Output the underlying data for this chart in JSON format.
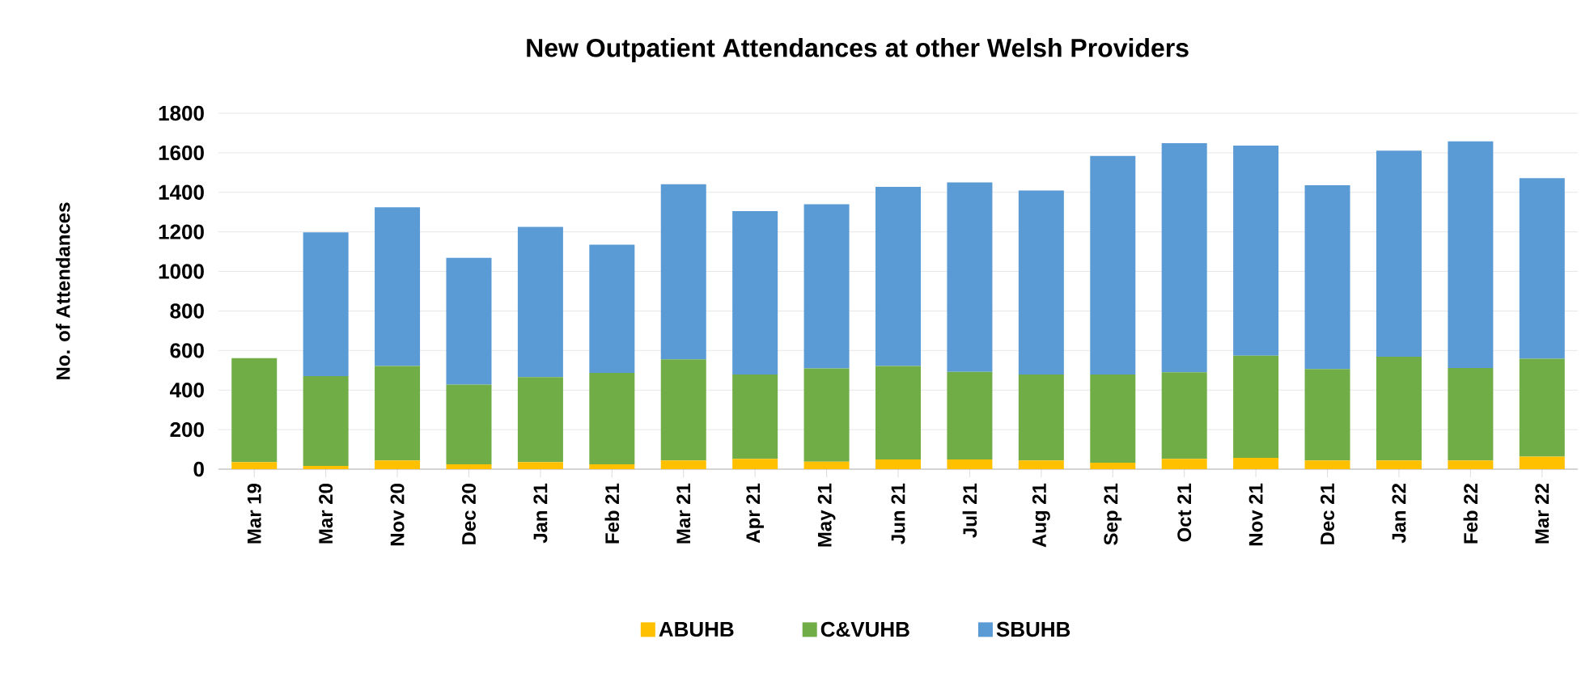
{
  "chart_data": {
    "type": "bar",
    "title": "New Outpatient Attendances at other Welsh Providers",
    "ylabel": "No. of Attendances",
    "categories": [
      "Mar 19",
      "Mar 20",
      "Nov 20",
      "Dec 20",
      "Jan 21",
      "Feb 21",
      "Mar 21",
      "Apr 21",
      "May 21",
      "Jun 21",
      "Jul 21",
      "Aug 21",
      "Sep 21",
      "Oct 21",
      "Nov 21",
      "Dec 21",
      "Jan 22",
      "Feb 22",
      "Mar 22"
    ],
    "stacked": true,
    "series": [
      {
        "name": "ABUHB",
        "color": "#ffc000",
        "values": [
          36,
          16,
          44,
          25,
          36,
          25,
          44,
          52,
          38,
          49,
          49,
          44,
          33,
          52,
          57,
          44,
          44,
          44,
          63
        ]
      },
      {
        "name": "C&VUHB",
        "color": "#70ad47",
        "values": [
          525,
          454,
          478,
          402,
          429,
          462,
          511,
          427,
          471,
          473,
          443,
          435,
          446,
          438,
          517,
          462,
          525,
          467,
          495
        ]
      },
      {
        "name": "SBUHB",
        "color": "#5b9bd5",
        "values": [
          0,
          728,
          802,
          642,
          760,
          648,
          886,
          826,
          831,
          906,
          958,
          930,
          1105,
          1159,
          1062,
          930,
          1042,
          1147,
          914
        ]
      }
    ],
    "ylim": [
      0,
      1800
    ],
    "yticks": [
      0,
      200,
      400,
      600,
      800,
      1000,
      1200,
      1400,
      1600,
      1800
    ],
    "grid": "y",
    "legend": "bottom"
  }
}
